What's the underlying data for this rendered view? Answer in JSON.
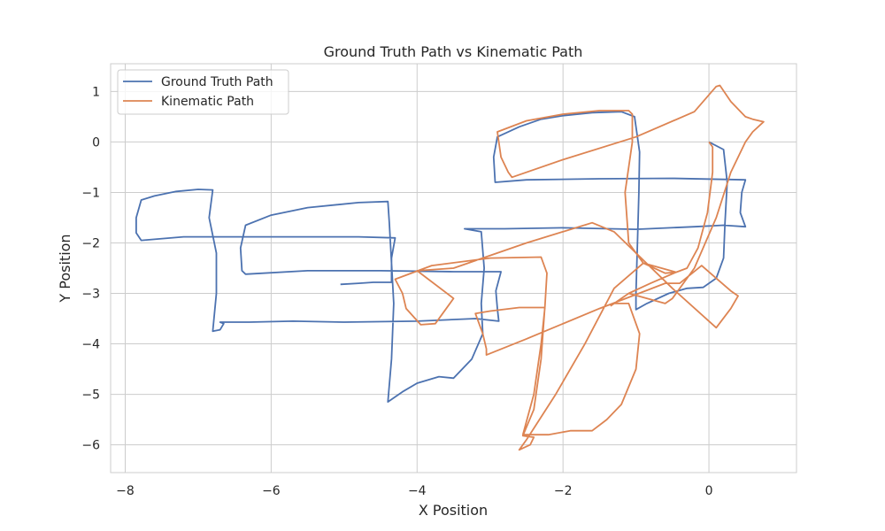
{
  "chart_data": {
    "type": "line",
    "title": "Ground Truth Path vs Kinematic Path",
    "xlabel": "X Position",
    "ylabel": "Y Position",
    "xlim": [
      -8.2,
      1.2
    ],
    "ylim": [
      -6.55,
      1.55
    ],
    "xticks": [
      -8,
      -6,
      -4,
      -2,
      0
    ],
    "yticks": [
      1,
      0,
      -1,
      -2,
      -3,
      -4,
      -5,
      -6
    ],
    "xtick_labels": [
      "−8",
      "−6",
      "−4",
      "−2",
      "0"
    ],
    "ytick_labels": [
      "1",
      "0",
      "−1",
      "−2",
      "−3",
      "−4",
      "−5",
      "−6"
    ],
    "grid": true,
    "legend_position": "upper-left",
    "series": [
      {
        "name": "Ground Truth Path",
        "color": "#4c72b0",
        "points": [
          [
            0,
            0
          ],
          [
            0.2,
            -0.15
          ],
          [
            0.25,
            -0.8
          ],
          [
            0.22,
            -1.6
          ],
          [
            0.2,
            -2.3
          ],
          [
            0.1,
            -2.7
          ],
          [
            -0.08,
            -2.88
          ],
          [
            -0.3,
            -2.9
          ],
          [
            -0.55,
            -3.0
          ],
          [
            -0.85,
            -3.2
          ],
          [
            -1.0,
            -3.32
          ],
          [
            -1.0,
            -3.0
          ],
          [
            -0.98,
            -2.0
          ],
          [
            -0.96,
            -1.0
          ],
          [
            -0.95,
            -0.2
          ],
          [
            -1.02,
            0.5
          ],
          [
            -1.2,
            0.6
          ],
          [
            -1.6,
            0.58
          ],
          [
            -2.0,
            0.52
          ],
          [
            -2.3,
            0.45
          ],
          [
            -2.6,
            0.3
          ],
          [
            -2.9,
            0.1
          ],
          [
            -2.95,
            -0.3
          ],
          [
            -2.93,
            -0.8
          ],
          [
            -2.5,
            -0.75
          ],
          [
            -1.5,
            -0.73
          ],
          [
            -0.5,
            -0.72
          ],
          [
            0.5,
            -0.75
          ],
          [
            0.45,
            -1.0
          ],
          [
            0.43,
            -1.4
          ],
          [
            0.5,
            -1.68
          ],
          [
            0.2,
            -1.65
          ],
          [
            -0.2,
            -1.68
          ],
          [
            -1.0,
            -1.73
          ],
          [
            -2.0,
            -1.7
          ],
          [
            -2.8,
            -1.72
          ],
          [
            -3.35,
            -1.72
          ],
          [
            -3.12,
            -1.78
          ],
          [
            -3.08,
            -2.5
          ],
          [
            -3.12,
            -3.2
          ],
          [
            -3.1,
            -3.8
          ],
          [
            -3.25,
            -4.3
          ],
          [
            -3.5,
            -4.68
          ],
          [
            -3.7,
            -4.65
          ],
          [
            -4.0,
            -4.78
          ],
          [
            -4.2,
            -4.95
          ],
          [
            -4.4,
            -5.15
          ],
          [
            -4.35,
            -4.3
          ],
          [
            -4.32,
            -3.2
          ],
          [
            -4.35,
            -2.4
          ],
          [
            -4.38,
            -1.6
          ],
          [
            -4.4,
            -1.18
          ],
          [
            -4.8,
            -1.2
          ],
          [
            -5.5,
            -1.3
          ],
          [
            -6.0,
            -1.45
          ],
          [
            -6.35,
            -1.65
          ],
          [
            -6.42,
            -2.1
          ],
          [
            -6.4,
            -2.55
          ],
          [
            -6.35,
            -2.62
          ],
          [
            -5.5,
            -2.55
          ],
          [
            -4.5,
            -2.55
          ],
          [
            -3.5,
            -2.57
          ],
          [
            -2.85,
            -2.57
          ],
          [
            -2.92,
            -2.95
          ],
          [
            -2.9,
            -3.3
          ],
          [
            -2.88,
            -3.55
          ],
          [
            -3.2,
            -3.5
          ],
          [
            -4.0,
            -3.55
          ],
          [
            -5.0,
            -3.57
          ],
          [
            -5.7,
            -3.55
          ],
          [
            -6.3,
            -3.57
          ],
          [
            -6.7,
            -3.57
          ],
          [
            -6.65,
            -3.6
          ],
          [
            -6.7,
            -3.72
          ],
          [
            -6.8,
            -3.75
          ],
          [
            -6.75,
            -3.0
          ],
          [
            -6.75,
            -2.2
          ],
          [
            -6.85,
            -1.5
          ],
          [
            -6.8,
            -0.95
          ],
          [
            -7.0,
            -0.94
          ],
          [
            -7.3,
            -0.98
          ],
          [
            -7.6,
            -1.07
          ],
          [
            -7.78,
            -1.15
          ],
          [
            -7.85,
            -1.5
          ],
          [
            -7.85,
            -1.8
          ],
          [
            -7.78,
            -1.95
          ],
          [
            -7.2,
            -1.88
          ],
          [
            -6.5,
            -1.88
          ],
          [
            -5.5,
            -1.88
          ],
          [
            -4.8,
            -1.88
          ],
          [
            -4.3,
            -1.9
          ],
          [
            -4.35,
            -2.3
          ],
          [
            -4.35,
            -2.78
          ],
          [
            -4.6,
            -2.78
          ],
          [
            -4.8,
            -2.8
          ],
          [
            -5.05,
            -2.82
          ]
        ]
      },
      {
        "name": "Kinematic Path",
        "color": "#dd8452",
        "points": [
          [
            0,
            0
          ],
          [
            0.05,
            -0.1
          ],
          [
            0.05,
            -0.6
          ],
          [
            -0.02,
            -1.4
          ],
          [
            -0.15,
            -2.1
          ],
          [
            -0.3,
            -2.5
          ],
          [
            -0.45,
            -2.58
          ],
          [
            -0.9,
            -2.4
          ],
          [
            -1.3,
            -2.9
          ],
          [
            -1.7,
            -4.0
          ],
          [
            -2.1,
            -5.0
          ],
          [
            -2.5,
            -5.9
          ],
          [
            -2.6,
            -6.1
          ],
          [
            -2.45,
            -6.0
          ],
          [
            -2.4,
            -5.85
          ],
          [
            -2.55,
            -5.82
          ],
          [
            -2.4,
            -5.3
          ],
          [
            -2.3,
            -4.3
          ],
          [
            -2.25,
            -3.28
          ],
          [
            -2.6,
            -3.28
          ],
          [
            -3.0,
            -3.35
          ],
          [
            -3.2,
            -3.4
          ],
          [
            -3.1,
            -3.8
          ],
          [
            -3.05,
            -4.1
          ],
          [
            -3.05,
            -4.22
          ],
          [
            -2.5,
            -3.9
          ],
          [
            -1.5,
            -3.3
          ],
          [
            -0.6,
            -2.8
          ],
          [
            -0.4,
            -2.8
          ],
          [
            -0.1,
            -2.45
          ],
          [
            0.1,
            -2.7
          ],
          [
            0.3,
            -2.95
          ],
          [
            0.4,
            -3.05
          ],
          [
            0.3,
            -3.3
          ],
          [
            0.1,
            -3.68
          ],
          [
            -0.5,
            -2.9
          ],
          [
            -1.0,
            -2.2
          ],
          [
            -1.3,
            -1.78
          ],
          [
            -1.6,
            -1.6
          ],
          [
            -2.5,
            -2.0
          ],
          [
            -3.5,
            -2.5
          ],
          [
            -4.0,
            -2.55
          ],
          [
            -3.5,
            -3.1
          ],
          [
            -3.75,
            -3.6
          ],
          [
            -3.95,
            -3.62
          ],
          [
            -4.15,
            -3.3
          ],
          [
            -4.2,
            -3.0
          ],
          [
            -4.3,
            -2.72
          ],
          [
            -3.8,
            -2.45
          ],
          [
            -3.0,
            -2.3
          ],
          [
            -2.3,
            -2.28
          ],
          [
            -2.22,
            -2.6
          ],
          [
            -2.25,
            -3.3
          ],
          [
            -2.3,
            -4.0
          ],
          [
            -2.4,
            -5.0
          ],
          [
            -2.55,
            -5.8
          ],
          [
            -2.2,
            -5.8
          ],
          [
            -1.9,
            -5.72
          ],
          [
            -1.6,
            -5.72
          ],
          [
            -1.4,
            -5.5
          ],
          [
            -1.2,
            -5.2
          ],
          [
            -1.0,
            -4.5
          ],
          [
            -0.95,
            -3.8
          ],
          [
            -1.1,
            -3.2
          ],
          [
            -1.3,
            -3.2
          ],
          [
            -1.1,
            -3.0
          ],
          [
            -0.8,
            -2.8
          ],
          [
            -0.45,
            -2.58
          ],
          [
            -0.45,
            -2.58
          ],
          [
            -0.6,
            -2.6
          ],
          [
            -0.9,
            -2.4
          ],
          [
            -1.1,
            -2.0
          ],
          [
            -1.15,
            -1.0
          ],
          [
            -1.05,
            0.0
          ],
          [
            -1.05,
            0.55
          ],
          [
            -1.1,
            0.62
          ],
          [
            -1.5,
            0.62
          ],
          [
            -2.0,
            0.55
          ],
          [
            -2.5,
            0.42
          ],
          [
            -2.9,
            0.2
          ],
          [
            -2.85,
            -0.3
          ],
          [
            -2.75,
            -0.6
          ],
          [
            -2.7,
            -0.7
          ],
          [
            -2.0,
            -0.35
          ],
          [
            -1.0,
            0.1
          ],
          [
            -0.2,
            0.6
          ],
          [
            0.1,
            1.1
          ],
          [
            0.15,
            1.12
          ],
          [
            0.3,
            0.8
          ],
          [
            0.5,
            0.5
          ],
          [
            0.6,
            0.45
          ],
          [
            0.75,
            0.4
          ],
          [
            0.6,
            0.2
          ],
          [
            0.5,
            0.0
          ],
          [
            0.3,
            -0.6
          ],
          [
            0.1,
            -1.5
          ],
          [
            -0.2,
            -2.5
          ],
          [
            -0.5,
            -3.1
          ],
          [
            -0.6,
            -3.2
          ],
          [
            -1.1,
            -3.0
          ],
          [
            -1.35,
            -3.25
          ]
        ]
      }
    ]
  }
}
